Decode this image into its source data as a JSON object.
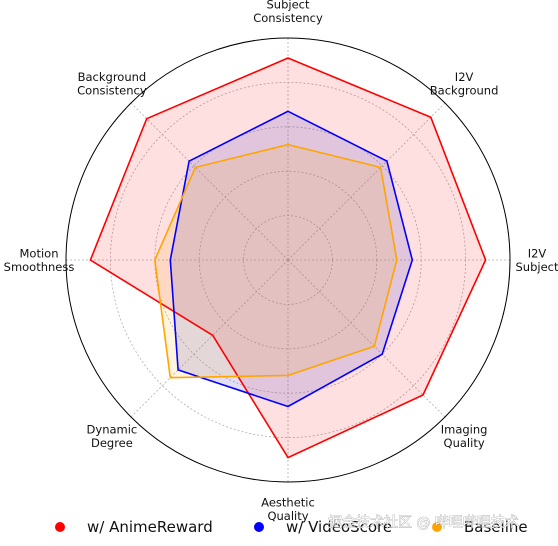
{
  "chart_data": {
    "type": "radar",
    "axes": [
      [
        "Subject",
        "Consistency"
      ],
      [
        "I2V",
        "Background"
      ],
      [
        "I2V",
        "Subject"
      ],
      [
        "Imaging",
        "Quality"
      ],
      [
        "Aesthetic",
        "Quality"
      ],
      [
        "Dynamic",
        "Degree"
      ],
      [
        "Motion",
        "Smoothness"
      ],
      [
        "Background",
        "Consistency"
      ]
    ],
    "rlim": [
      0,
      1
    ],
    "grid": true,
    "grid_rings": [
      0.2,
      0.4,
      0.6,
      0.8
    ],
    "series": [
      {
        "name": "w/ AnimeReward",
        "color": "#ff0000",
        "fill": "#ff0000",
        "fill_opacity": 0.12,
        "values": [
          0.91,
          0.91,
          0.89,
          0.86,
          0.89,
          0.48,
          0.89,
          0.9
        ]
      },
      {
        "name": "w/ VideoScore",
        "color": "#0000ff",
        "fill": "#6a5acd",
        "fill_opacity": 0.2,
        "values": [
          0.67,
          0.63,
          0.56,
          0.6,
          0.66,
          0.7,
          0.53,
          0.63
        ]
      },
      {
        "name": "Baseline",
        "color": "#ffa500",
        "fill": "#ffa500",
        "fill_opacity": 0.12,
        "values": [
          0.52,
          0.59,
          0.49,
          0.55,
          0.52,
          0.75,
          0.6,
          0.59
        ]
      }
    ],
    "legend_position": "bottom"
  },
  "watermark": "掘金技术社区 @ 哔哩哔哩技术"
}
